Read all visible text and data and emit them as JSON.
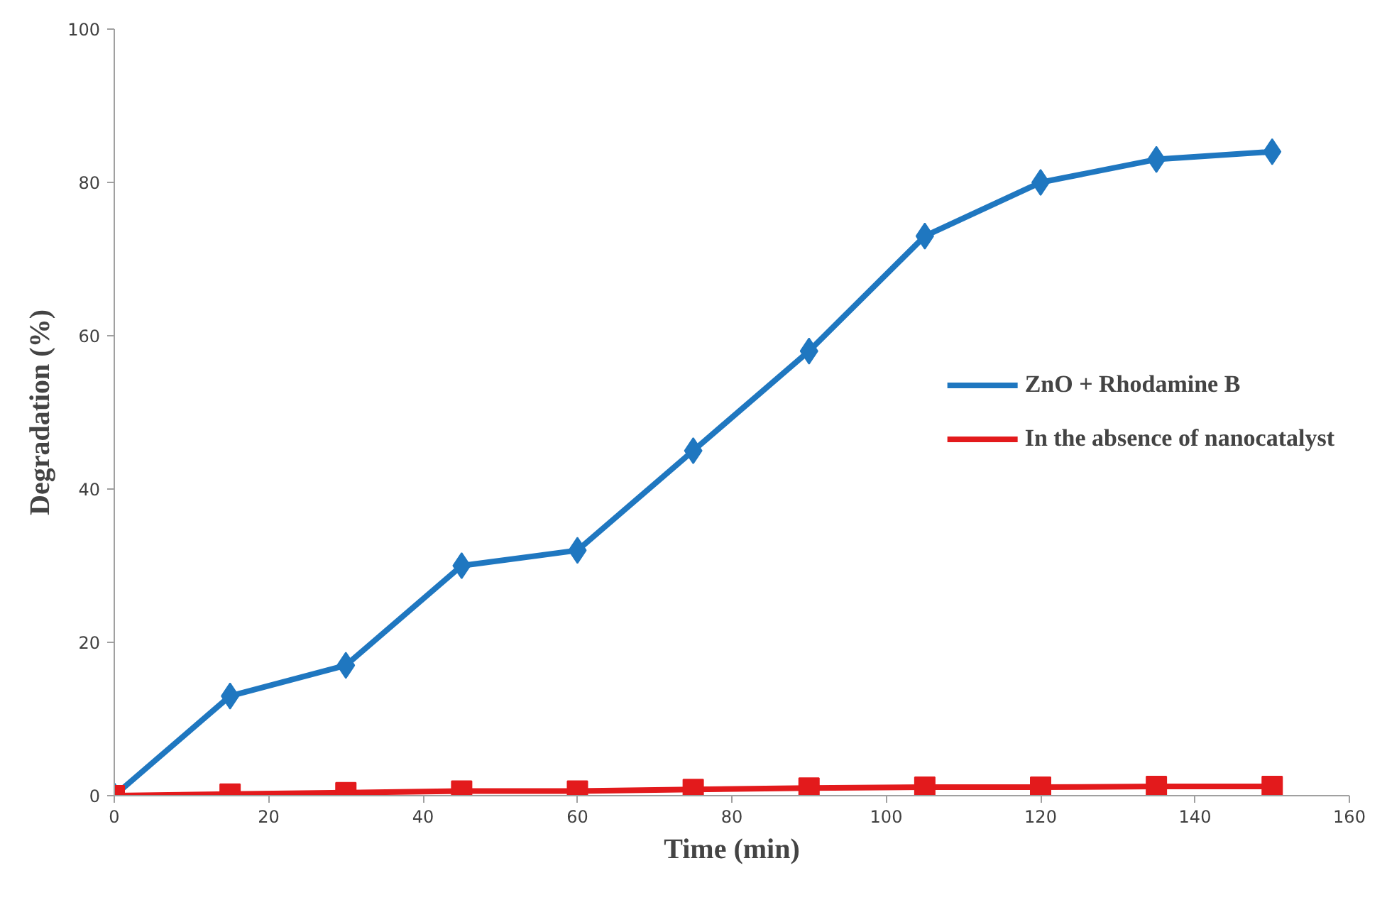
{
  "chart_data": {
    "type": "line",
    "xlabel": "Time (min)",
    "ylabel": "Degradation (%)",
    "x": [
      0,
      15,
      30,
      45,
      60,
      75,
      90,
      105,
      120,
      135,
      150
    ],
    "series": [
      {
        "name": "ZnO + Rhodamine B",
        "color": "#1f77c0",
        "marker": "diamond",
        "values": [
          0,
          13,
          17,
          30,
          32,
          45,
          58,
          73,
          80,
          83,
          84
        ]
      },
      {
        "name": "In the absence of nanocatalyst",
        "color": "#e31a1c",
        "marker": "square",
        "values": [
          0,
          0.2,
          0.4,
          0.6,
          0.6,
          0.8,
          1.0,
          1.1,
          1.1,
          1.2,
          1.2
        ]
      }
    ],
    "xlim": [
      0,
      160
    ],
    "xticks": [
      0,
      20,
      40,
      60,
      80,
      100,
      120,
      140,
      160
    ],
    "ylim": [
      0,
      100
    ],
    "yticks": [
      0,
      20,
      40,
      60,
      80,
      100
    ],
    "grid": false,
    "legend": "right",
    "line_style": "solid"
  }
}
